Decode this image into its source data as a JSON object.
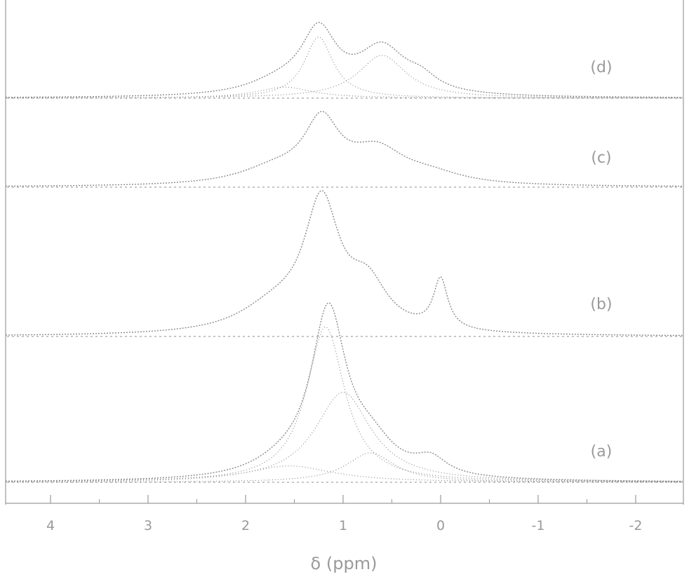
{
  "chart_data": {
    "type": "line",
    "title": "",
    "xlabel": "δ (ppm)",
    "ylabel": "",
    "xlim": [
      4.5,
      -2.5
    ],
    "x_reversed": true,
    "x_ticks": [
      4,
      3,
      2,
      1,
      0,
      -1,
      -2
    ],
    "x_tick_labels": [
      "4",
      "3",
      "2",
      "1",
      "0",
      "-1",
      "-2"
    ],
    "grid": false,
    "legend": "none",
    "panel_order_bottom_to_top": [
      "a",
      "b",
      "c",
      "d"
    ],
    "panels": [
      {
        "label": "(a)",
        "peaks": [
          {
            "center": 1.15,
            "width": 0.22,
            "height": 1.0
          },
          {
            "center": 0.72,
            "width": 0.3,
            "height": 0.18
          },
          {
            "center": 0.1,
            "width": 0.2,
            "height": 0.1
          },
          {
            "center": 1.6,
            "width": 0.4,
            "height": 0.08
          }
        ],
        "components": [
          {
            "center": 1.18,
            "width": 0.24,
            "height": 0.95,
            "style": "dotted"
          },
          {
            "center": 1.0,
            "width": 0.35,
            "height": 0.55,
            "style": "dotted"
          },
          {
            "center": 0.72,
            "width": 0.3,
            "height": 0.18,
            "style": "dotted"
          },
          {
            "center": 1.55,
            "width": 0.55,
            "height": 0.1,
            "style": "dotted"
          }
        ]
      },
      {
        "label": "(b)",
        "peaks": [
          {
            "center": 1.22,
            "width": 0.22,
            "height": 1.0
          },
          {
            "center": 0.75,
            "width": 0.25,
            "height": 0.35
          },
          {
            "center": 0.0,
            "width": 0.09,
            "height": 0.4
          },
          {
            "center": 1.7,
            "width": 0.45,
            "height": 0.2
          }
        ],
        "components": []
      },
      {
        "label": "(c)",
        "peaks": [
          {
            "center": 1.22,
            "width": 0.22,
            "height": 1.0
          },
          {
            "center": 0.65,
            "width": 0.35,
            "height": 0.55
          },
          {
            "center": 0.1,
            "width": 0.4,
            "height": 0.15
          },
          {
            "center": 1.7,
            "width": 0.45,
            "height": 0.25
          }
        ],
        "components": []
      },
      {
        "label": "(d)",
        "peaks": [
          {
            "center": 1.25,
            "width": 0.22,
            "height": 1.0
          },
          {
            "center": 0.6,
            "width": 0.3,
            "height": 0.75
          },
          {
            "center": 0.2,
            "width": 0.2,
            "height": 0.2
          },
          {
            "center": 1.65,
            "width": 0.4,
            "height": 0.2
          }
        ],
        "components": [
          {
            "center": 1.25,
            "width": 0.18,
            "height": 1.0,
            "style": "dotted"
          },
          {
            "center": 0.6,
            "width": 0.3,
            "height": 0.7,
            "style": "dotted"
          },
          {
            "center": 1.6,
            "width": 0.35,
            "height": 0.18,
            "style": "dotted"
          }
        ]
      }
    ],
    "colors": {
      "line": "#8c8c8c",
      "text": "#9a9a9a"
    }
  }
}
